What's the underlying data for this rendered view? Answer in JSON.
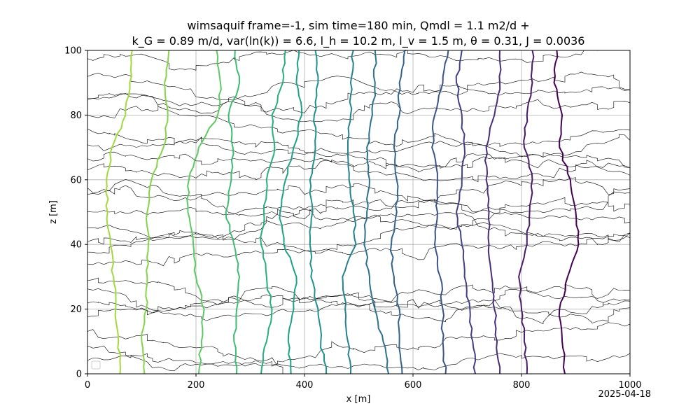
{
  "chart_data": {
    "type": "line",
    "title_line1": "wimsaquif frame=-1, sim time=180 min, Qmdl = 1.1 m2/d +",
    "title_line2": "k_G = 0.89 m/d, var(ln(k)) = 6.6, l_h = 10.2 m, l_v = 1.5 m, θ = 0.31, J = 0.0036",
    "xlabel": "x [m]",
    "ylabel": "z [m]",
    "xlim": [
      0,
      1000
    ],
    "ylim": [
      0,
      100
    ],
    "xticks": [
      "0",
      "200",
      "400",
      "600",
      "800",
      "1000"
    ],
    "yticks": [
      "0",
      "20",
      "40",
      "60",
      "80",
      "100"
    ],
    "grid": true,
    "date_stamp": "2025-04-18",
    "head_lines": [
      {
        "color": "#a2d93f",
        "points": [
          [
            60,
            0
          ],
          [
            57,
            10
          ],
          [
            52,
            20
          ],
          [
            48,
            30
          ],
          [
            42,
            40
          ],
          [
            37,
            50
          ],
          [
            35,
            60
          ],
          [
            45,
            70
          ],
          [
            70,
            80
          ],
          [
            78,
            90
          ],
          [
            82,
            100
          ]
        ]
      },
      {
        "color": "#84d44b",
        "points": [
          [
            105,
            0
          ],
          [
            100,
            10
          ],
          [
            108,
            20
          ],
          [
            110,
            30
          ],
          [
            112,
            40
          ],
          [
            110,
            50
          ],
          [
            118,
            60
          ],
          [
            140,
            70
          ],
          [
            148,
            80
          ],
          [
            142,
            90
          ],
          [
            150,
            100
          ]
        ]
      },
      {
        "color": "#5ec962",
        "points": [
          [
            205,
            0
          ],
          [
            210,
            10
          ],
          [
            215,
            20
          ],
          [
            200,
            30
          ],
          [
            195,
            40
          ],
          [
            185,
            50
          ],
          [
            187,
            60
          ],
          [
            205,
            70
          ],
          [
            240,
            80
          ],
          [
            245,
            90
          ],
          [
            238,
            100
          ]
        ]
      },
      {
        "color": "#3fbc73",
        "points": [
          [
            275,
            0
          ],
          [
            270,
            10
          ],
          [
            275,
            20
          ],
          [
            280,
            30
          ],
          [
            270,
            40
          ],
          [
            255,
            50
          ],
          [
            265,
            60
          ],
          [
            268,
            70
          ],
          [
            260,
            80
          ],
          [
            280,
            90
          ],
          [
            272,
            100
          ]
        ]
      },
      {
        "color": "#28ae80",
        "points": [
          [
            320,
            0
          ],
          [
            330,
            10
          ],
          [
            340,
            20
          ],
          [
            330,
            30
          ],
          [
            320,
            40
          ],
          [
            325,
            50
          ],
          [
            330,
            60
          ],
          [
            345,
            70
          ],
          [
            340,
            80
          ],
          [
            360,
            90
          ],
          [
            365,
            100
          ]
        ]
      },
      {
        "color": "#1fa188",
        "points": [
          [
            375,
            0
          ],
          [
            370,
            10
          ],
          [
            380,
            20
          ],
          [
            385,
            30
          ],
          [
            362,
            40
          ],
          [
            355,
            50
          ],
          [
            365,
            60
          ],
          [
            380,
            70
          ],
          [
            395,
            80
          ],
          [
            385,
            90
          ],
          [
            390,
            100
          ]
        ]
      },
      {
        "color": "#21918c",
        "points": [
          [
            440,
            0
          ],
          [
            430,
            10
          ],
          [
            425,
            20
          ],
          [
            412,
            30
          ],
          [
            410,
            40
          ],
          [
            415,
            50
          ],
          [
            410,
            60
          ],
          [
            420,
            70
          ],
          [
            418,
            80
          ],
          [
            425,
            90
          ],
          [
            420,
            100
          ]
        ]
      },
      {
        "color": "#26828e",
        "points": [
          [
            485,
            0
          ],
          [
            480,
            10
          ],
          [
            475,
            20
          ],
          [
            470,
            30
          ],
          [
            495,
            40
          ],
          [
            490,
            50
          ],
          [
            482,
            60
          ],
          [
            480,
            70
          ],
          [
            485,
            80
          ],
          [
            485,
            90
          ],
          [
            490,
            100
          ]
        ]
      },
      {
        "color": "#2c728e",
        "points": [
          [
            555,
            0
          ],
          [
            545,
            10
          ],
          [
            530,
            20
          ],
          [
            520,
            30
          ],
          [
            510,
            40
          ],
          [
            515,
            50
          ],
          [
            520,
            60
          ],
          [
            515,
            70
          ],
          [
            525,
            80
          ],
          [
            530,
            90
          ],
          [
            530,
            100
          ]
        ]
      },
      {
        "color": "#33638d",
        "points": [
          [
            580,
            0
          ],
          [
            575,
            10
          ],
          [
            575,
            20
          ],
          [
            565,
            30
          ],
          [
            560,
            40
          ],
          [
            570,
            50
          ],
          [
            570,
            60
          ],
          [
            565,
            70
          ],
          [
            575,
            80
          ],
          [
            575,
            90
          ],
          [
            585,
            100
          ]
        ]
      },
      {
        "color": "#3b528b",
        "points": [
          [
            660,
            0
          ],
          [
            655,
            10
          ],
          [
            655,
            20
          ],
          [
            650,
            30
          ],
          [
            640,
            40
          ],
          [
            645,
            50
          ],
          [
            645,
            60
          ],
          [
            635,
            70
          ],
          [
            640,
            80
          ],
          [
            655,
            90
          ],
          [
            665,
            100
          ]
        ]
      },
      {
        "color": "#424086",
        "points": [
          [
            715,
            0
          ],
          [
            710,
            10
          ],
          [
            705,
            20
          ],
          [
            695,
            30
          ],
          [
            690,
            40
          ],
          [
            680,
            50
          ],
          [
            690,
            60
          ],
          [
            695,
            70
          ],
          [
            690,
            80
          ],
          [
            680,
            90
          ],
          [
            690,
            100
          ]
        ]
      },
      {
        "color": "#472d7b",
        "points": [
          [
            760,
            0
          ],
          [
            755,
            10
          ],
          [
            750,
            20
          ],
          [
            745,
            30
          ],
          [
            740,
            40
          ],
          [
            740,
            50
          ],
          [
            735,
            60
          ],
          [
            735,
            70
          ],
          [
            750,
            80
          ],
          [
            760,
            90
          ],
          [
            760,
            100
          ]
        ]
      },
      {
        "color": "#481b6d",
        "points": [
          [
            810,
            0
          ],
          [
            805,
            10
          ],
          [
            800,
            20
          ],
          [
            795,
            30
          ],
          [
            810,
            40
          ],
          [
            815,
            50
          ],
          [
            820,
            60
          ],
          [
            805,
            70
          ],
          [
            810,
            80
          ],
          [
            820,
            90
          ],
          [
            820,
            100
          ]
        ]
      },
      {
        "color": "#440154",
        "points": [
          [
            880,
            0
          ],
          [
            875,
            10
          ],
          [
            870,
            20
          ],
          [
            885,
            30
          ],
          [
            905,
            40
          ],
          [
            900,
            50
          ],
          [
            890,
            60
          ],
          [
            870,
            70
          ],
          [
            875,
            80
          ],
          [
            860,
            90
          ],
          [
            865,
            100
          ]
        ]
      }
    ]
  }
}
